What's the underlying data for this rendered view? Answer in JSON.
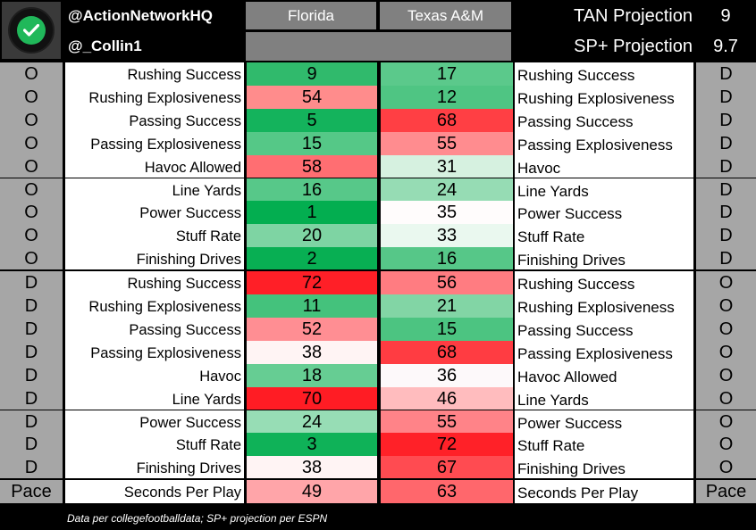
{
  "header": {
    "handle1": "@ActionNetworkHQ",
    "handle2": "@_Collin1",
    "team_a": "Florida",
    "team_b": "Texas A&M",
    "proj1_label": "TAN Projection",
    "proj1_value": "9",
    "proj2_label": "SP+ Projection",
    "proj2_value": "9.7",
    "logo_icon": "check-icon"
  },
  "rows": [
    {
      "l": "O",
      "ll": "Rushing Success",
      "a": "9",
      "ac": "#30ba6c",
      "b": "17",
      "bc": "#5bc98b",
      "rl": "Rushing Success",
      "r": "D"
    },
    {
      "l": "O",
      "ll": "Rushing Explosiveness",
      "a": "54",
      "ac": "#ff8c8c",
      "b": "12",
      "bc": "#4fc583",
      "rl": "Rushing Explosiveness",
      "r": "D"
    },
    {
      "l": "O",
      "ll": "Passing Success",
      "a": "5",
      "ac": "#14b35c",
      "b": "68",
      "bc": "#ff3f44",
      "rl": "Passing Success",
      "r": "D"
    },
    {
      "l": "O",
      "ll": "Passing Explosiveness",
      "a": "15",
      "ac": "#55c887",
      "b": "55",
      "bc": "#ff8c8f",
      "rl": "Passing Explosiveness",
      "r": "D"
    },
    {
      "l": "O",
      "ll": "Havoc Allowed",
      "a": "58",
      "ac": "#ff6e72",
      "b": "31",
      "bc": "#d6f1e0",
      "rl": "Havoc",
      "r": "D"
    },
    {
      "l": "O",
      "ll": "Line Yards",
      "a": "16",
      "ac": "#57c889",
      "b": "24",
      "bc": "#96dcb4",
      "rl": "Line Yards",
      "r": "D"
    },
    {
      "l": "O",
      "ll": "Power Success",
      "a": "1",
      "ac": "#03ae50",
      "b": "35",
      "bc": "#fffcfc",
      "rl": "Power Success",
      "r": "D"
    },
    {
      "l": "O",
      "ll": "Stuff Rate",
      "a": "20",
      "ac": "#7ed4a3",
      "b": "33",
      "bc": "#eaf8ef",
      "rl": "Stuff Rate",
      "r": "D"
    },
    {
      "l": "O",
      "ll": "Finishing Drives",
      "a": "2",
      "ac": "#08af53",
      "b": "16",
      "bc": "#56c788",
      "rl": "Finishing Drives",
      "r": "D"
    },
    {
      "l": "D",
      "ll": "Rushing Success",
      "a": "72",
      "ac": "#ff1f27",
      "b": "56",
      "bc": "#ff7c81",
      "rl": "Rushing Success",
      "r": "O"
    },
    {
      "l": "D",
      "ll": "Rushing Explosiveness",
      "a": "11",
      "ac": "#44c27c",
      "b": "21",
      "bc": "#82d5a5",
      "rl": "Rushing Explosiveness",
      "r": "O"
    },
    {
      "l": "D",
      "ll": "Passing Success",
      "a": "52",
      "ac": "#ff8e93",
      "b": "15",
      "bc": "#4cc481",
      "rl": "Passing Success",
      "r": "O"
    },
    {
      "l": "D",
      "ll": "Passing Explosiveness",
      "a": "38",
      "ac": "#fff4f4",
      "b": "68",
      "bc": "#ff3c42",
      "rl": "Passing Explosiveness",
      "r": "O"
    },
    {
      "l": "D",
      "ll": "Havoc",
      "a": "18",
      "ac": "#66cd93",
      "b": "36",
      "bc": "#fdf9fa",
      "rl": "Havoc Allowed",
      "r": "O"
    },
    {
      "l": "D",
      "ll": "Line Yards",
      "a": "70",
      "ac": "#ff1c24",
      "b": "46",
      "bc": "#ffbcbe",
      "rl": "Line Yards",
      "r": "O"
    },
    {
      "l": "D",
      "ll": "Power Success",
      "a": "24",
      "ac": "#97ddb5",
      "b": "55",
      "bc": "#ff8388",
      "rl": "Power Success",
      "r": "O"
    },
    {
      "l": "D",
      "ll": "Stuff Rate",
      "a": "3",
      "ac": "#0fb258",
      "b": "72",
      "bc": "#ff2128",
      "rl": "Stuff Rate",
      "r": "O"
    },
    {
      "l": "D",
      "ll": "Finishing Drives",
      "a": "38",
      "ac": "#fff4f4",
      "b": "67",
      "bc": "#ff4b51",
      "rl": "Finishing Drives",
      "r": "O"
    },
    {
      "l": "Pace",
      "ll": "Seconds Per Play",
      "a": "49",
      "ac": "#ffa5a9",
      "b": "63",
      "bc": "#ff676c",
      "rl": "Seconds Per Play",
      "r": "Pace"
    }
  ],
  "footer": {
    "note": "Data per collegefootballdata; SP+ projection per ESPN"
  }
}
